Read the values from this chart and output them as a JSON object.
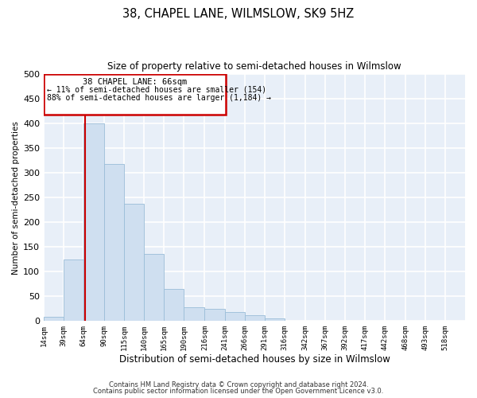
{
  "title": "38, CHAPEL LANE, WILMSLOW, SK9 5HZ",
  "subtitle": "Size of property relative to semi-detached houses in Wilmslow",
  "xlabel": "Distribution of semi-detached houses by size in Wilmslow",
  "ylabel": "Number of semi-detached properties",
  "bin_labels": [
    "14sqm",
    "39sqm",
    "64sqm",
    "90sqm",
    "115sqm",
    "140sqm",
    "165sqm",
    "190sqm",
    "216sqm",
    "241sqm",
    "266sqm",
    "291sqm",
    "316sqm",
    "342sqm",
    "367sqm",
    "392sqm",
    "417sqm",
    "442sqm",
    "468sqm",
    "493sqm",
    "518sqm"
  ],
  "bin_edges": [
    14,
    39,
    64,
    90,
    115,
    140,
    165,
    190,
    216,
    241,
    266,
    291,
    316,
    342,
    367,
    392,
    417,
    442,
    468,
    493,
    518
  ],
  "bar_heights": [
    8,
    125,
    400,
    318,
    238,
    136,
    65,
    27,
    25,
    18,
    12,
    6,
    0,
    0,
    0,
    0,
    0,
    0,
    0,
    0
  ],
  "bar_color": "#cfdff0",
  "bar_edge_color": "#9abdd8",
  "property_line_x": 66,
  "property_line_color": "#cc0000",
  "ylim": [
    0,
    500
  ],
  "yticks": [
    0,
    50,
    100,
    150,
    200,
    250,
    300,
    350,
    400,
    450,
    500
  ],
  "annotation_title": "38 CHAPEL LANE: 66sqm",
  "annotation_line1": "← 11% of semi-detached houses are smaller (154)",
  "annotation_line2": "88% of semi-detached houses are larger (1,184) →",
  "annotation_box_color": "#cc0000",
  "footnote1": "Contains HM Land Registry data © Crown copyright and database right 2024.",
  "footnote2": "Contains public sector information licensed under the Open Government Licence v3.0.",
  "fig_background": "#ffffff",
  "plot_background": "#e8eff8",
  "grid_color": "#ffffff"
}
